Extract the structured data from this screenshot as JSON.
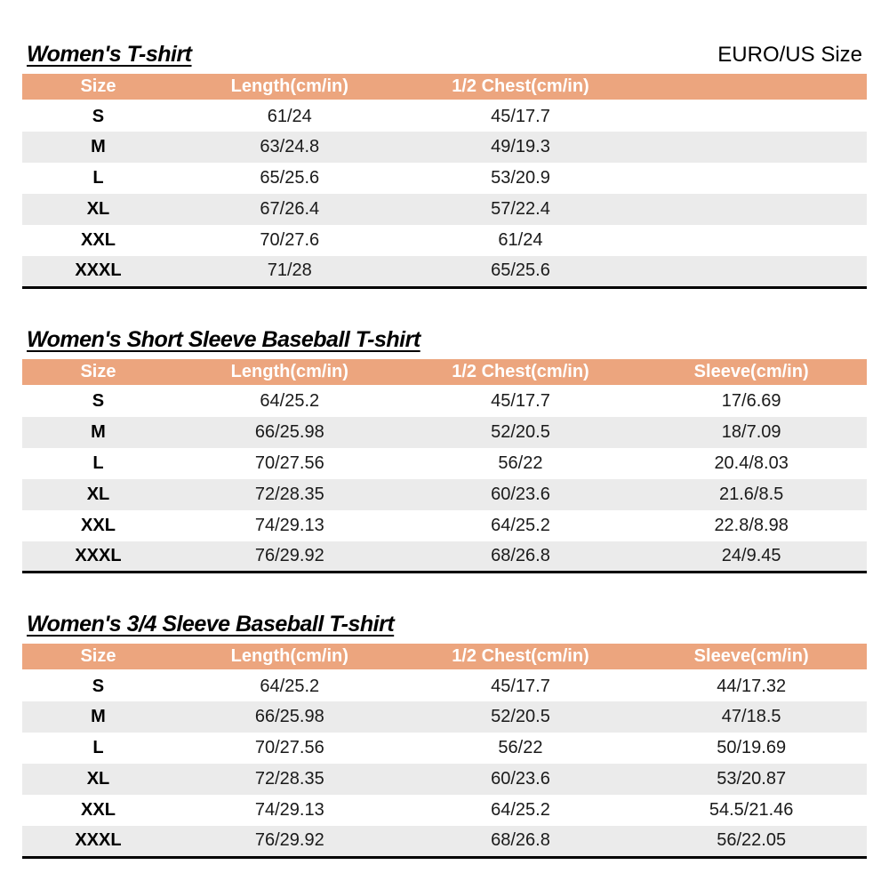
{
  "page": {
    "size_standard_label": "EURO/US Size"
  },
  "colors": {
    "header_bg": "#ECA57E",
    "header_text": "#FFFFFF",
    "row_alt_bg": "#EBEBEB",
    "table_border": "#000000"
  },
  "tables": [
    {
      "title": "Women's T-shirt",
      "right_label": "EURO/US Size",
      "columns": [
        "Size",
        "Length(cm/in)",
        "1/2 Chest(cm/in)",
        ""
      ],
      "rows": [
        [
          "S",
          "61/24",
          "45/17.7",
          ""
        ],
        [
          "M",
          "63/24.8",
          "49/19.3",
          ""
        ],
        [
          "L",
          "65/25.6",
          "53/20.9",
          ""
        ],
        [
          "XL",
          "67/26.4",
          "57/22.4",
          ""
        ],
        [
          "XXL",
          "70/27.6",
          "61/24",
          ""
        ],
        [
          "XXXL",
          "71/28",
          "65/25.6",
          ""
        ]
      ]
    },
    {
      "title": "Women's Short Sleeve Baseball T-shirt",
      "right_label": "",
      "columns": [
        "Size",
        "Length(cm/in)",
        "1/2 Chest(cm/in)",
        "Sleeve(cm/in)"
      ],
      "rows": [
        [
          "S",
          "64/25.2",
          "45/17.7",
          "17/6.69"
        ],
        [
          "M",
          "66/25.98",
          "52/20.5",
          "18/7.09"
        ],
        [
          "L",
          "70/27.56",
          "56/22",
          "20.4/8.03"
        ],
        [
          "XL",
          "72/28.35",
          "60/23.6",
          "21.6/8.5"
        ],
        [
          "XXL",
          "74/29.13",
          "64/25.2",
          "22.8/8.98"
        ],
        [
          "XXXL",
          "76/29.92",
          "68/26.8",
          "24/9.45"
        ]
      ]
    },
    {
      "title": "Women's 3/4 Sleeve Baseball T-shirt",
      "right_label": "",
      "columns": [
        "Size",
        "Length(cm/in)",
        "1/2 Chest(cm/in)",
        "Sleeve(cm/in)"
      ],
      "rows": [
        [
          "S",
          "64/25.2",
          "45/17.7",
          "44/17.32"
        ],
        [
          "M",
          "66/25.98",
          "52/20.5",
          "47/18.5"
        ],
        [
          "L",
          "70/27.56",
          "56/22",
          "50/19.69"
        ],
        [
          "XL",
          "72/28.35",
          "60/23.6",
          "53/20.87"
        ],
        [
          "XXL",
          "74/29.13",
          "64/25.2",
          "54.5/21.46"
        ],
        [
          "XXXL",
          "76/29.92",
          "68/26.8",
          "56/22.05"
        ]
      ]
    }
  ]
}
